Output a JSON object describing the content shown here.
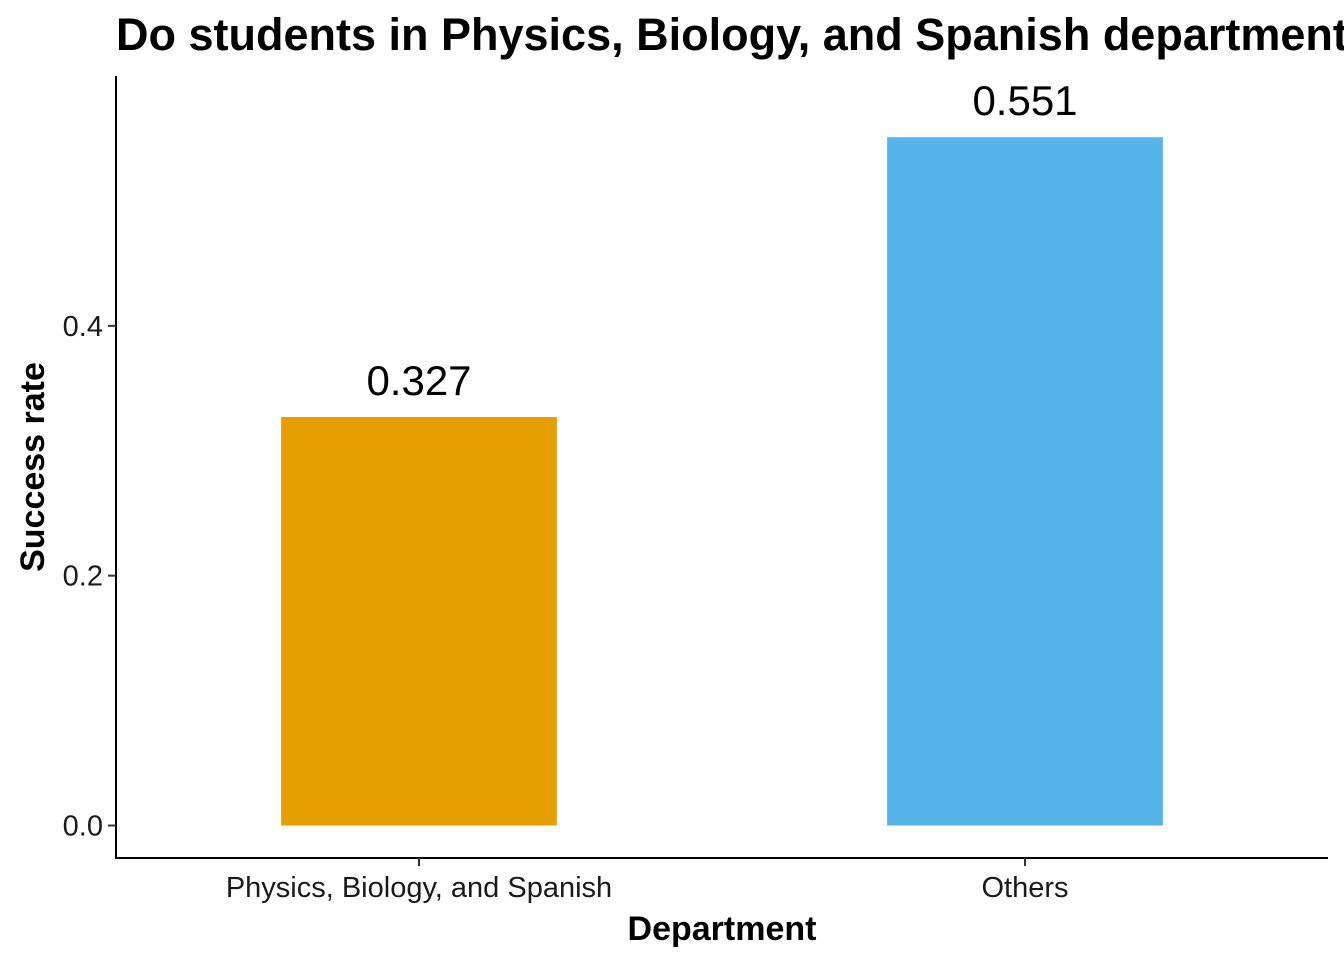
{
  "chart_data": {
    "type": "bar",
    "title": "Do students in Physics, Biology, and Spanish departments",
    "xlabel": "Department",
    "ylabel": "Success rate",
    "categories": [
      "Physics, Biology, and Spanish",
      "Others"
    ],
    "values": [
      0.327,
      0.551
    ],
    "data_labels": [
      "0.327",
      "0.551"
    ],
    "colors": [
      "#E69F00",
      "#56B4E9"
    ],
    "ylim": [
      -0.026,
      0.6
    ],
    "yticks": [
      0.0,
      0.2,
      0.4
    ],
    "ytick_labels": [
      "0.0",
      "0.2",
      "0.4"
    ],
    "grid": false,
    "legend": "none"
  }
}
